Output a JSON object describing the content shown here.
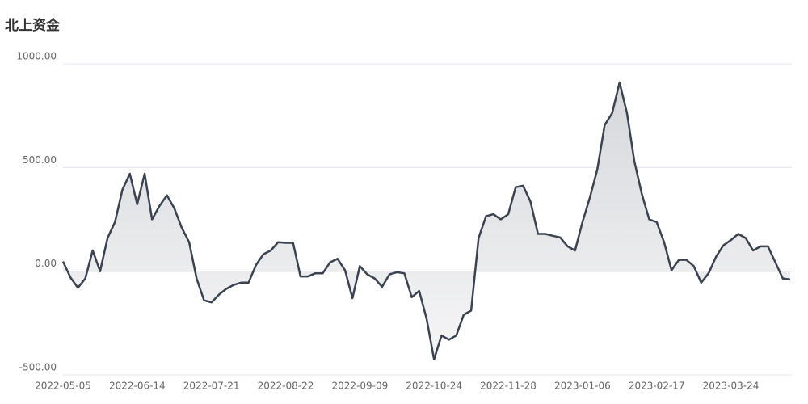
{
  "chart_data": {
    "type": "area",
    "title": "北上资金",
    "color": "#3b4350",
    "categories": [
      "2022-05-05",
      null,
      null,
      null,
      null,
      null,
      null,
      null,
      null,
      null,
      "2022-06-14",
      null,
      null,
      null,
      null,
      null,
      null,
      null,
      null,
      null,
      "2022-07-21",
      null,
      null,
      null,
      null,
      null,
      null,
      null,
      null,
      null,
      "2022-08-22",
      null,
      null,
      null,
      null,
      null,
      null,
      null,
      null,
      null,
      "2022-09-09",
      null,
      null,
      null,
      null,
      null,
      null,
      null,
      null,
      null,
      "2022-10-24",
      null,
      null,
      null,
      null,
      null,
      null,
      null,
      null,
      null,
      "2022-11-28",
      null,
      null,
      null,
      null,
      null,
      null,
      null,
      null,
      null,
      "2023-01-06",
      null,
      null,
      null,
      null,
      null,
      null,
      null,
      null,
      null,
      "2023-02-17",
      null,
      null,
      null,
      null,
      null,
      null,
      null,
      null,
      null,
      "2023-03-24",
      null,
      null,
      null,
      null,
      null,
      null,
      null,
      null
    ],
    "values": [
      47,
      -30,
      -80,
      -35,
      100,
      0,
      160,
      237,
      393,
      470,
      323,
      470,
      250,
      315,
      366,
      303,
      210,
      140,
      -35,
      -140,
      -150,
      -113,
      -85,
      -66,
      -55,
      -55,
      30,
      82,
      100,
      140,
      137,
      137,
      -25,
      -25,
      -10,
      -10,
      43,
      60,
      5,
      -130,
      25,
      -15,
      -35,
      -75,
      -15,
      -5,
      -10,
      -125,
      -95,
      -230,
      -425,
      -310,
      -330,
      -310,
      -210,
      -190,
      160,
      265,
      275,
      250,
      275,
      405,
      412,
      335,
      180,
      180,
      171,
      163,
      120,
      100,
      237,
      355,
      490,
      705,
      762,
      910,
      762,
      530,
      373,
      250,
      237,
      140,
      5,
      55,
      55,
      25,
      -55,
      -10,
      70,
      125,
      150,
      180,
      160,
      100,
      120,
      120,
      43,
      -35,
      -40
    ],
    "ylim": [
      -500,
      1000
    ],
    "yticks": [
      {
        "value": -500,
        "label": "-500.00"
      },
      {
        "value": 0,
        "label": "0.00"
      },
      {
        "value": 500,
        "label": "500.00"
      },
      {
        "value": 1000,
        "label": "1000.00"
      }
    ],
    "grid": true
  }
}
